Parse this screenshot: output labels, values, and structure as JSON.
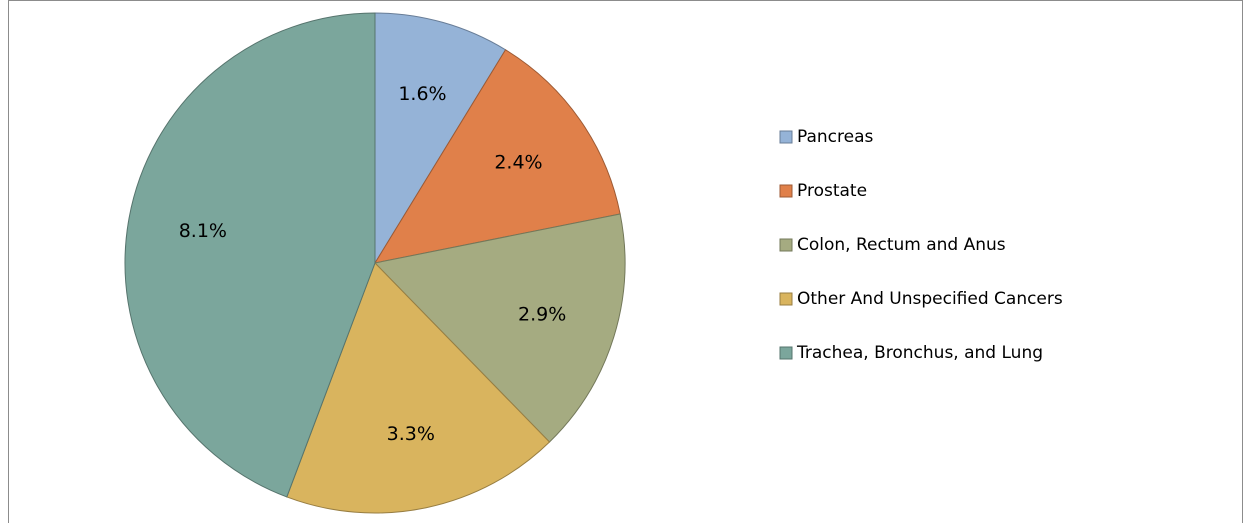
{
  "chart_data": {
    "type": "pie",
    "categories": [
      "Pancreas",
      "Prostate",
      "Colon, Rectum and Anus",
      "Other And Unspecified Cancers",
      "Trachea, Bronchus, and Lung"
    ],
    "values": [
      1.6,
      2.4,
      2.9,
      3.3,
      8.1
    ],
    "value_labels": [
      "1.6%",
      "2.4%",
      "2.9%",
      "3.3%",
      "8.1%"
    ],
    "colors": [
      "#95b3d7",
      "#e0804a",
      "#a5ab81",
      "#d9b45e",
      "#7ba69c"
    ],
    "legend": "right"
  }
}
